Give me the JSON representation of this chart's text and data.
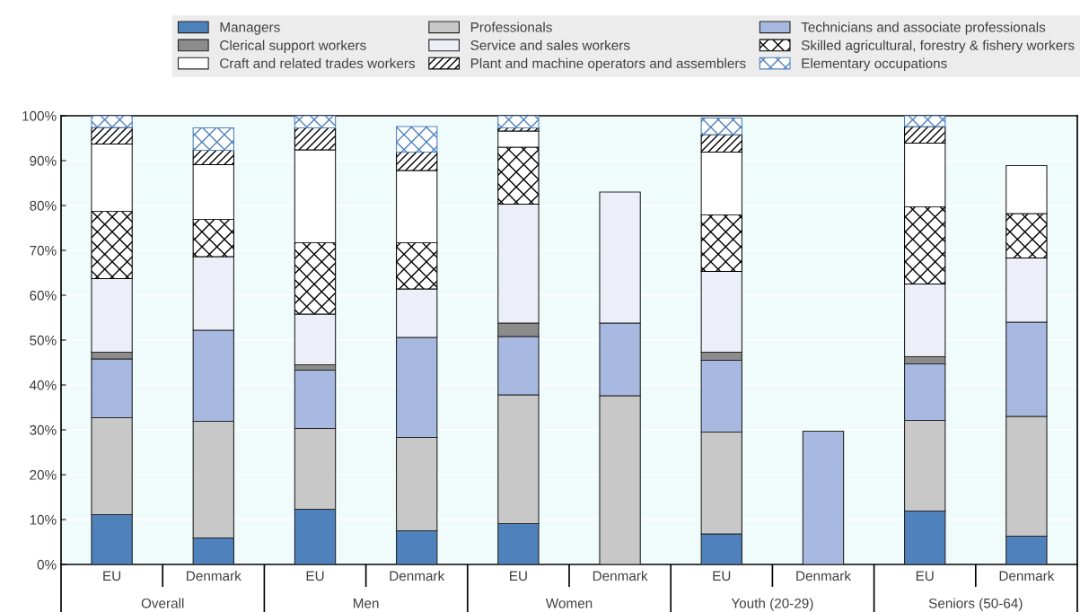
{
  "chart_data": {
    "type": "bar",
    "stacked": true,
    "legend": "top",
    "grid": "y",
    "categories": [
      "EU",
      "Denmark",
      "EU",
      "Denmark",
      "EU",
      "Denmark",
      "EU",
      "Denmark",
      "EU",
      "Denmark"
    ],
    "annotations": [
      "Overall",
      "Men",
      "Women",
      "Youth (20-29)",
      "Seniors (50-64)"
    ],
    "ylim": [
      0,
      100
    ],
    "yticks": [
      {
        "value": 0,
        "label": "0%"
      },
      {
        "value": 10,
        "label": "10%"
      },
      {
        "value": 20,
        "label": "20%"
      },
      {
        "value": 30,
        "label": "30%"
      },
      {
        "value": 40,
        "label": "40%"
      },
      {
        "value": 50,
        "label": "50%"
      },
      {
        "value": 60,
        "label": "60%"
      },
      {
        "value": 70,
        "label": "70%"
      },
      {
        "value": 80,
        "label": "80%"
      },
      {
        "value": 90,
        "label": "90%"
      },
      {
        "value": 100,
        "label": "100%"
      }
    ],
    "series": [
      {
        "name": "Managers",
        "color": "#4f81bd",
        "values": [
          11.1,
          5.9,
          12.3,
          7.5,
          9.1,
          null,
          6.8,
          null,
          11.9,
          6.3
        ]
      },
      {
        "name": "Professionals",
        "color": "#c8c8c8",
        "values": [
          21.6,
          26.0,
          18.0,
          20.8,
          28.7,
          37.6,
          22.7,
          null,
          20.2,
          26.7
        ]
      },
      {
        "name": "Technicians and associate professionals",
        "color": "#a7b8e1",
        "values": [
          13.1,
          20.3,
          13.0,
          22.3,
          13.0,
          16.2,
          16.0,
          29.7,
          12.6,
          21.0
        ]
      },
      {
        "name": "Clerical support workers",
        "color": "#8c8c8c",
        "values": [
          1.5,
          null,
          1.2,
          null,
          3.0,
          null,
          1.8,
          null,
          1.6,
          null
        ]
      },
      {
        "name": "Service and sales workers",
        "color": "#eceff8",
        "values": [
          16.4,
          16.4,
          11.3,
          10.8,
          26.5,
          29.2,
          18.0,
          null,
          16.2,
          14.3
        ]
      },
      {
        "name": "Skilled agricultural, forestry & fishery workers",
        "color": "#000000",
        "values": [
          15.0,
          8.3,
          15.9,
          10.3,
          12.7,
          null,
          12.6,
          null,
          17.2,
          9.9
        ]
      },
      {
        "name": "Craft and related trades workers",
        "color": "#ffffff",
        "values": [
          15.0,
          12.2,
          20.7,
          16.1,
          3.6,
          null,
          14.0,
          null,
          14.2,
          10.7
        ]
      },
      {
        "name": "Plant and machine operators and assemblers",
        "color": "#000000",
        "values": [
          3.7,
          3.2,
          4.9,
          4.1,
          0.7,
          null,
          3.9,
          null,
          3.7,
          null
        ]
      },
      {
        "name": "Elementary occupations",
        "color": "#4f81bd",
        "values": [
          2.6,
          5.0,
          2.7,
          5.7,
          2.7,
          null,
          3.7,
          null,
          2.4,
          null
        ]
      }
    ]
  }
}
